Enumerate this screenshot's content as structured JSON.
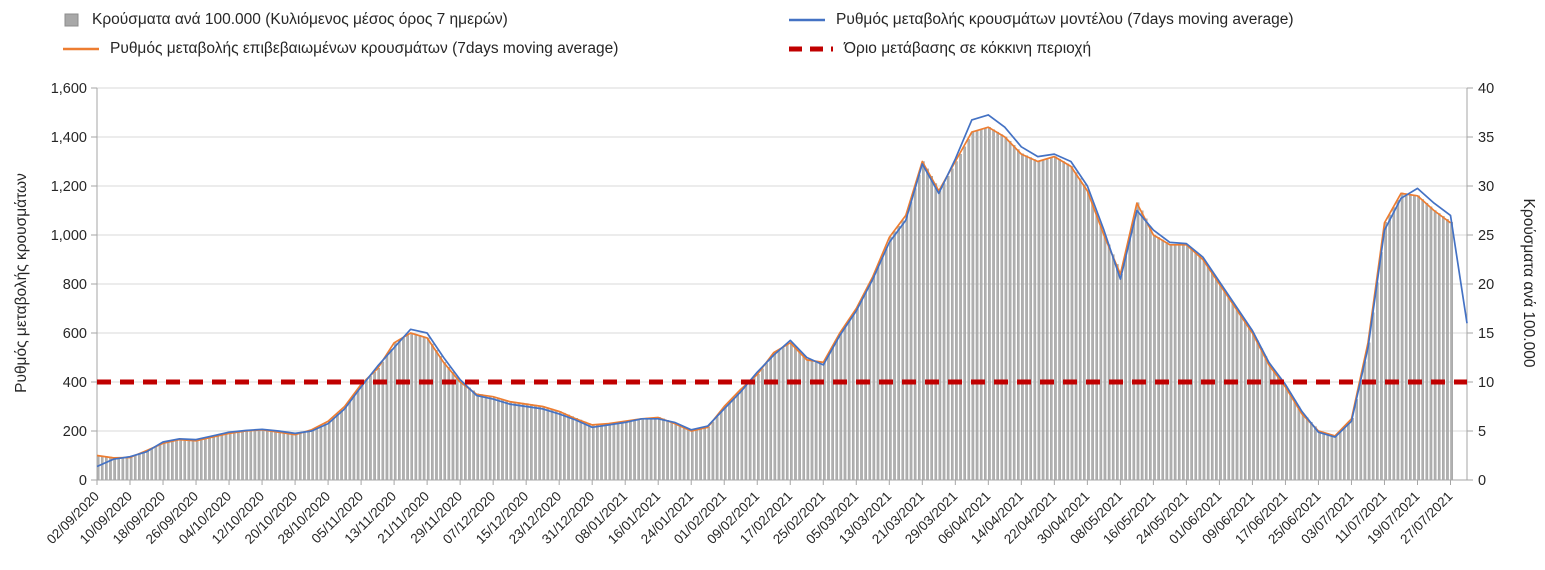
{
  "legend": {
    "items": [
      {
        "id": "cases-bars",
        "label": "Κρούσματα ανά 100.000 (Κυλιόμενος μέσος όρος 7 ημερών)",
        "marker": "bar",
        "color": "#a8a8a8"
      },
      {
        "id": "model-rate",
        "label": "Ρυθμός μεταβολής κρουσμάτων μοντέλου (7days moving average)",
        "marker": "line",
        "color": "#4472c4"
      },
      {
        "id": "confirmed-rate",
        "label": "Ρυθμός μεταβολής επιβεβαιωμένων κρουσμάτων (7days moving average)",
        "marker": "line",
        "color": "#ed7d31"
      },
      {
        "id": "red-threshold",
        "label": "Όριο μετάβασης σε κόκκινη περιοχή",
        "marker": "dashed",
        "color": "#c00000"
      }
    ]
  },
  "left_axis": {
    "label": "Ρυθμός μεταβολής κρουσμάτων",
    "min": 0,
    "max": 1600,
    "step": 200,
    "ticks": [
      "0",
      "200",
      "400",
      "600",
      "800",
      "1,000",
      "1,200",
      "1,400",
      "1,600"
    ]
  },
  "right_axis": {
    "label": "Κρούσματα ανά 100.000",
    "min": 0,
    "max": 40,
    "step": 5,
    "ticks": [
      "0",
      "5",
      "10",
      "15",
      "20",
      "25",
      "30",
      "35",
      "40"
    ]
  },
  "chart_data": {
    "type": "combo",
    "title": "",
    "x_start_date": "02/09/2020",
    "x_tick_step_days": 8,
    "x_max_day": 332,
    "bars_last_day": 328,
    "grid": "horizontal",
    "legend_position": "top",
    "x_tick_labels": [
      "02/09/2020",
      "10/09/2020",
      "18/09/2020",
      "26/09/2020",
      "04/10/2020",
      "12/10/2020",
      "20/10/2020",
      "28/10/2020",
      "05/11/2020",
      "13/11/2020",
      "21/11/2020",
      "29/11/2020",
      "07/12/2020",
      "15/12/2020",
      "23/12/2020",
      "31/12/2020",
      "08/01/2021",
      "16/01/2021",
      "24/01/2021",
      "01/02/2021",
      "09/02/2021",
      "17/02/2021",
      "25/02/2021",
      "05/03/2021",
      "13/03/2021",
      "21/03/2021",
      "29/03/2021",
      "06/04/2021",
      "14/04/2021",
      "22/04/2021",
      "30/04/2021",
      "08/05/2021",
      "16/05/2021",
      "24/05/2021",
      "01/06/2021",
      "09/06/2021",
      "17/06/2021",
      "25/06/2021",
      "03/07/2021",
      "11/07/2021",
      "19/07/2021",
      "27/07/2021"
    ],
    "threshold": {
      "label": "Όριο μετάβασης σε κόκκινη περιοχή",
      "left_value": 400,
      "right_value": 10,
      "color": "#c00000"
    },
    "series_keypoints": {
      "note": "values estimated from gridlines; days counted from 02/09/2020; lines on left axis, bars on right axis",
      "days": [
        0,
        4,
        8,
        12,
        16,
        20,
        24,
        28,
        32,
        36,
        40,
        44,
        48,
        52,
        56,
        60,
        64,
        68,
        72,
        76,
        80,
        84,
        88,
        92,
        96,
        100,
        104,
        108,
        112,
        116,
        120,
        124,
        128,
        132,
        136,
        140,
        144,
        148,
        152,
        156,
        160,
        164,
        168,
        172,
        176,
        180,
        184,
        188,
        192,
        196,
        200,
        204,
        208,
        212,
        216,
        220,
        224,
        228,
        232,
        236,
        240,
        244,
        248,
        252,
        256,
        260,
        264,
        268,
        272,
        276,
        280,
        284,
        288,
        292,
        296,
        300,
        304,
        308,
        312,
        316,
        320,
        324,
        328,
        332
      ],
      "model_rate_blue": [
        55,
        85,
        95,
        115,
        155,
        168,
        165,
        180,
        195,
        202,
        207,
        200,
        190,
        200,
        230,
        290,
        380,
        465,
        540,
        615,
        600,
        500,
        410,
        345,
        330,
        310,
        300,
        290,
        270,
        245,
        215,
        225,
        235,
        250,
        250,
        235,
        205,
        220,
        290,
        360,
        440,
        510,
        570,
        500,
        470,
        590,
        690,
        820,
        970,
        1060,
        1290,
        1170,
        1310,
        1470,
        1490,
        1440,
        1360,
        1320,
        1330,
        1300,
        1200,
        1020,
        820,
        1100,
        1020,
        970,
        965,
        910,
        810,
        710,
        610,
        480,
        390,
        280,
        195,
        175,
        240,
        540,
        1020,
        1150,
        1190,
        1130,
        1080,
        640
      ],
      "confirmed_rate_orange": [
        100,
        90,
        92,
        120,
        150,
        165,
        160,
        175,
        190,
        200,
        205,
        195,
        185,
        205,
        240,
        300,
        390,
        455,
        560,
        600,
        580,
        480,
        400,
        350,
        340,
        320,
        310,
        300,
        280,
        250,
        225,
        230,
        240,
        250,
        255,
        230,
        200,
        215,
        300,
        370,
        430,
        520,
        560,
        490,
        480,
        600,
        700,
        830,
        990,
        1080,
        1300,
        1180,
        1300,
        1420,
        1440,
        1400,
        1330,
        1300,
        1320,
        1280,
        1180,
        1000,
        840,
        1130,
        1000,
        960,
        960,
        900,
        800,
        700,
        600,
        470,
        380,
        270,
        200,
        180,
        250,
        560,
        1050,
        1170,
        1160,
        1100,
        1050,
        null
      ],
      "cases_per_100k_bars": [
        2.5,
        2.3,
        2.3,
        3.0,
        3.8,
        4.1,
        4.0,
        4.4,
        4.8,
        5.0,
        5.1,
        4.9,
        4.6,
        5.1,
        6.0,
        7.5,
        9.8,
        11.4,
        14.0,
        15.0,
        14.5,
        12.0,
        10.0,
        8.8,
        8.5,
        8.0,
        7.8,
        7.5,
        7.0,
        6.3,
        5.6,
        5.8,
        6.0,
        6.3,
        6.4,
        5.8,
        5.0,
        5.4,
        7.5,
        9.3,
        10.8,
        13.0,
        14.0,
        12.3,
        12.0,
        15.0,
        17.5,
        20.8,
        24.8,
        27.0,
        32.5,
        29.5,
        32.5,
        35.5,
        36.0,
        35.0,
        33.3,
        32.5,
        33.0,
        32.0,
        29.5,
        25.0,
        21.0,
        28.3,
        25.0,
        24.0,
        24.0,
        22.5,
        20.0,
        17.5,
        15.0,
        11.8,
        9.5,
        6.8,
        5.0,
        4.5,
        6.3,
        14.0,
        26.3,
        29.3,
        29.0,
        27.5,
        26.3,
        null
      ]
    }
  },
  "colors": {
    "bar": "#b0b0b0",
    "blue": "#4472c4",
    "orange": "#ed7d31",
    "red": "#c00000",
    "grid": "#d9d9d9",
    "axis": "#a6a6a6",
    "text": "#262626"
  }
}
